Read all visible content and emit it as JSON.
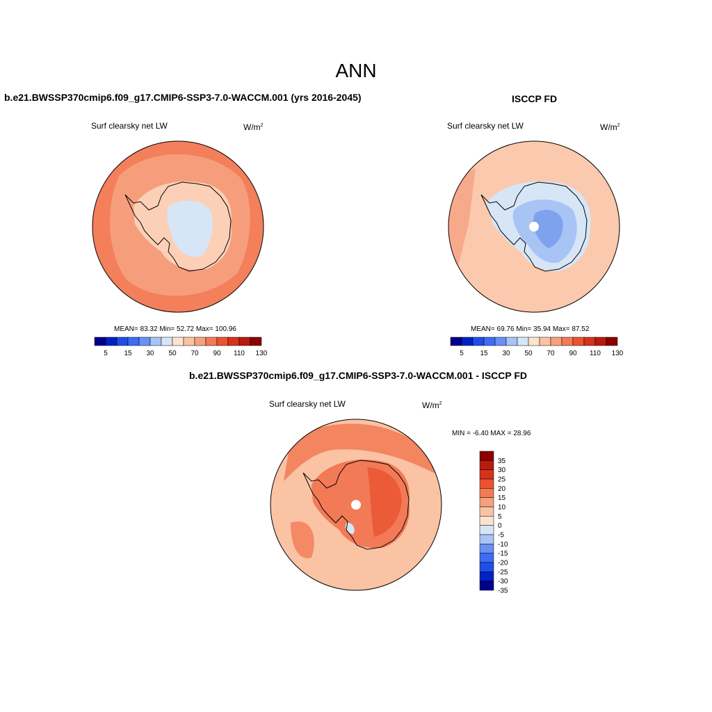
{
  "title": "ANN",
  "panels": {
    "model": {
      "title": "b.e21.BWSSP370cmip6.f09_g17.CMIP6-SSP3-7.0-WACCM.001 (yrs 2016-2045)",
      "left_label": "Surf clearsky net LW",
      "units_base": "W/m",
      "units_exp": "2",
      "stats": "MEAN=  83.32  Min=  52.72  Max= 100.96"
    },
    "obs": {
      "title": "ISCCP FD",
      "left_label": "Surf clearsky net LW",
      "units_base": "W/m",
      "units_exp": "2",
      "stats": "MEAN=  69.76  Min=  35.94  Max=  87.52"
    },
    "diff": {
      "title": "b.e21.BWSSP370cmip6.f09_g17.CMIP6-SSP3-7.0-WACCM.001 - ISCCP FD",
      "left_label": "Surf clearsky net LW",
      "units_base": "W/m",
      "units_exp": "2",
      "stats": "MIN =  -6.40 MAX =  28.96"
    }
  },
  "colorbar_abs": {
    "colors": [
      "#00008b",
      "#0022c4",
      "#1f4fe8",
      "#3e6cf5",
      "#6890f5",
      "#a8c4f5",
      "#d6e6f7",
      "#fde3cf",
      "#f9c3a4",
      "#f6a17d",
      "#f27a56",
      "#ea5430",
      "#d6321c",
      "#b81c0e",
      "#8b0000"
    ],
    "labels": [
      "5",
      "15",
      "30",
      "50",
      "70",
      "90",
      "110",
      "130"
    ]
  },
  "colorbar_diff": {
    "colors": [
      "#00008b",
      "#0022c4",
      "#1f4fe8",
      "#3e6cf5",
      "#6890f5",
      "#a8c4f5",
      "#d6e6f7",
      "#fde3cf",
      "#f9c3a4",
      "#f6a17d",
      "#f27a56",
      "#ea5430",
      "#d6321c",
      "#b81c0e",
      "#8b0000"
    ],
    "labels": [
      "35",
      "30",
      "25",
      "20",
      "15",
      "10",
      "5",
      "0",
      "-5",
      "-10",
      "-15",
      "-20",
      "-25",
      "-30",
      "-35"
    ]
  },
  "map_colors": {
    "ocean_model": "#f47f5b",
    "ocean_model_light": "#f6a382",
    "ice_model": "#fbd0b7",
    "ice_model_center": "#d6e6f7",
    "ocean_obs": "#fbc9ad",
    "ocean_obs_dark": "#f6a382",
    "ice_obs": "#d6e6f7",
    "ice_obs_center": "#a8c4f5",
    "ice_obs_core": "#7fa2ef",
    "ocean_diff": "#f9c3a4",
    "ocean_diff_dark": "#f27a56",
    "ice_diff": "#f27a56",
    "ice_diff_dark": "#ea5430",
    "coast": "#000000"
  }
}
